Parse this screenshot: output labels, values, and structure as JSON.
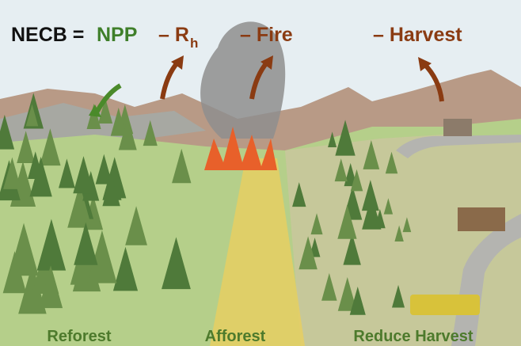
{
  "equation": {
    "lhs": "NECB =",
    "terms": [
      {
        "text": "NPP"
      },
      {
        "text": "– R",
        "subscript": "h"
      },
      {
        "text": "– Fire"
      },
      {
        "text": "– Harvest"
      }
    ]
  },
  "labels": [
    "Reforest",
    "Afforest",
    "Reduce Harvest"
  ]
}
